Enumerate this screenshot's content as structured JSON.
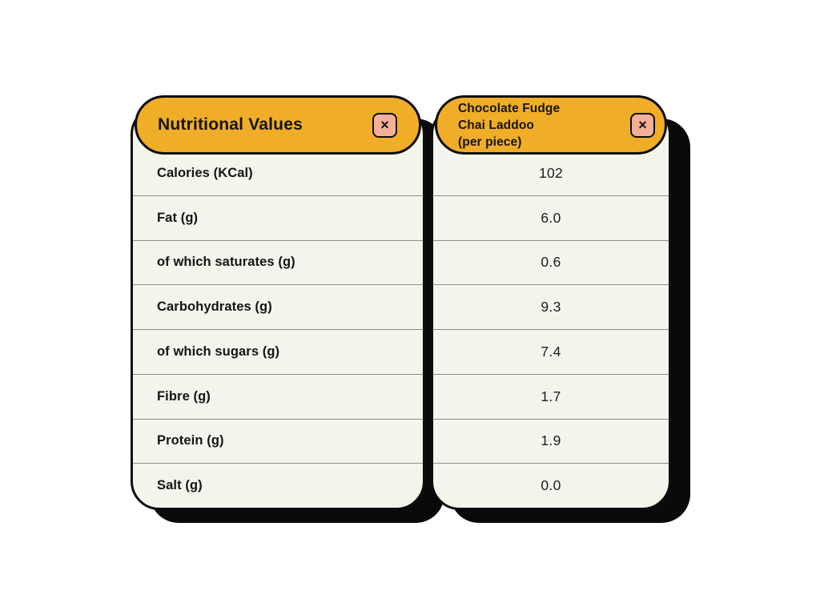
{
  "colors": {
    "page_bg": "#FFFFFF",
    "header_bg": "#F0AD27",
    "close_bg": "#F3B096",
    "card_bg": "#F3F4EC",
    "outline": "#0D0D0D",
    "shadow": "#0A0A0A",
    "divider": "#8E8E87",
    "text": "#141414"
  },
  "left_panel": {
    "title": "Nutritional Values",
    "close_icon": "×",
    "rows": [
      "Calories (KCal)",
      "Fat (g)",
      "of which saturates (g)",
      "Carbohydrates (g)",
      "of which sugars (g)",
      "Fibre (g)",
      "Protein (g)",
      "Salt (g)"
    ]
  },
  "right_panel": {
    "title_lines": [
      "Chocolate Fudge",
      "Chai Laddoo",
      "(per piece)"
    ],
    "close_icon": "×",
    "values": [
      "102",
      "6.0",
      "0.6",
      "9.3",
      "7.4",
      "1.7",
      "1.9",
      "0.0"
    ]
  }
}
